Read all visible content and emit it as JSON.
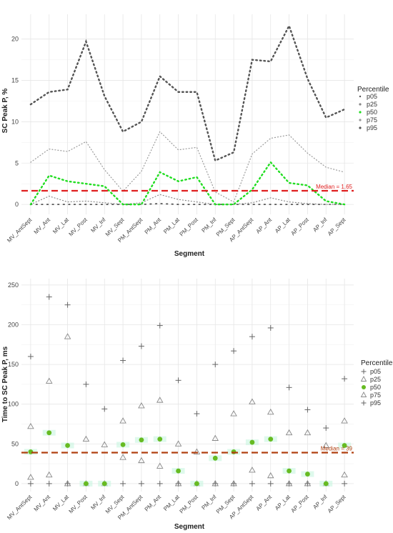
{
  "chart_data": [
    {
      "type": "line",
      "ylabel": "SC Peak P, %",
      "xlabel": "Segment",
      "categories": [
        "MV_AntSept",
        "MV_Ant",
        "MV_Lat",
        "MV_Post",
        "MV_Inf",
        "MV_Sept",
        "PM_AntSept",
        "PM_Ant",
        "PM_Lat",
        "PM_Post",
        "PM_Inf",
        "PM_Sept",
        "AP_AntSept",
        "AP_Ant",
        "AP_Lat",
        "AP_Post",
        "AP_Inf",
        "AP_Sept"
      ],
      "ylim": [
        -1.2,
        23
      ],
      "yticks": [
        0,
        5,
        10,
        15,
        20
      ],
      "yticklabels": [
        "0",
        "5",
        "10",
        "15",
        "20"
      ],
      "grid": true,
      "legend": {
        "title": "Percentile",
        "position": "right"
      },
      "series": [
        {
          "name": "p05",
          "color": "#555555",
          "style": "dotted-sparse",
          "values": [
            0,
            0,
            0,
            0,
            0,
            0,
            0,
            0.1,
            0,
            0,
            0,
            0,
            0,
            0,
            0,
            0,
            0,
            0
          ]
        },
        {
          "name": "p25",
          "color": "#888888",
          "style": "dotted",
          "values": [
            0,
            1.0,
            0.3,
            0.4,
            0.2,
            0,
            0.2,
            1.2,
            0.6,
            0.3,
            0,
            0,
            0.2,
            0.8,
            0.3,
            0.1,
            0,
            0
          ]
        },
        {
          "name": "p50",
          "color": "#22dd22",
          "style": "dotted-bold",
          "values": [
            0,
            3.5,
            2.8,
            2.5,
            2.2,
            0,
            0,
            3.9,
            2.8,
            3.3,
            0,
            0,
            1.8,
            5.1,
            2.6,
            2.3,
            0.4,
            0
          ]
        },
        {
          "name": "p75",
          "color": "#999999",
          "style": "dotted",
          "values": [
            5.1,
            6.7,
            6.4,
            7.6,
            4.2,
            1.6,
            4.0,
            8.8,
            6.6,
            6.9,
            1.5,
            0.3,
            6.1,
            8.0,
            8.4,
            6.2,
            4.5,
            3.9
          ]
        },
        {
          "name": "p95",
          "color": "#555555",
          "style": "dotted-bold",
          "values": [
            12.1,
            13.6,
            13.9,
            19.7,
            13.1,
            8.8,
            10.0,
            15.5,
            13.6,
            13.6,
            5.3,
            6.3,
            17.5,
            17.3,
            21.6,
            15.2,
            10.5,
            11.5
          ]
        }
      ],
      "median": {
        "value": 1.65,
        "label": "Median = 1.65",
        "color": "#e02020"
      }
    },
    {
      "type": "scatter",
      "ylabel": "Time to SC Peak P, ms",
      "xlabel": "Segment",
      "categories": [
        "MV_AntSept",
        "MV_Ant",
        "MV_Lat",
        "MV_Post",
        "MV_Inf",
        "MV_Sept",
        "PM_AntSept",
        "PM_Ant",
        "PM_Lat",
        "PM_Post",
        "PM_Inf",
        "PM_Sept",
        "AP_AntSept",
        "AP_Ant",
        "AP_Lat",
        "AP_Post",
        "AP_Inf",
        "AP_Sept"
      ],
      "ylim": [
        -10,
        258
      ],
      "yticks": [
        0,
        50,
        100,
        150,
        200,
        250
      ],
      "yticklabels": [
        "0",
        "50",
        "100",
        "150",
        "200",
        "250"
      ],
      "grid": true,
      "legend": {
        "title": "Percentile",
        "position": "right"
      },
      "series": [
        {
          "name": "p05",
          "color": "#666666",
          "marker": "plus",
          "values": [
            0,
            0,
            0,
            0,
            0,
            0,
            0,
            0,
            0,
            0,
            0,
            0,
            0,
            0,
            0,
            0,
            0,
            0
          ]
        },
        {
          "name": "p25",
          "color": "#888888",
          "marker": "triangle",
          "values": [
            8,
            11,
            0,
            0,
            0,
            33,
            29,
            22,
            0,
            0,
            0,
            0,
            17,
            10,
            0,
            0,
            0,
            11
          ]
        },
        {
          "name": "p50",
          "color": "#66bb22",
          "marker": "circle",
          "values": [
            40,
            64,
            48,
            0,
            0,
            49,
            55,
            56,
            16,
            0,
            32,
            40,
            52,
            56,
            16,
            12,
            0,
            48
          ]
        },
        {
          "name": "p75",
          "color": "#888888",
          "marker": "triangle",
          "values": [
            72,
            129,
            185,
            56,
            49,
            79,
            98,
            105,
            50,
            40,
            57,
            88,
            103,
            90,
            64,
            64,
            48,
            79
          ]
        },
        {
          "name": "p95",
          "color": "#666666",
          "marker": "plus",
          "values": [
            160,
            235,
            225,
            125,
            94,
            155,
            173,
            199,
            130,
            88,
            150,
            167,
            185,
            196,
            121,
            93,
            70,
            132
          ]
        }
      ],
      "median": {
        "value": 39,
        "label": "Median = 39",
        "color": "#b04010"
      }
    }
  ]
}
